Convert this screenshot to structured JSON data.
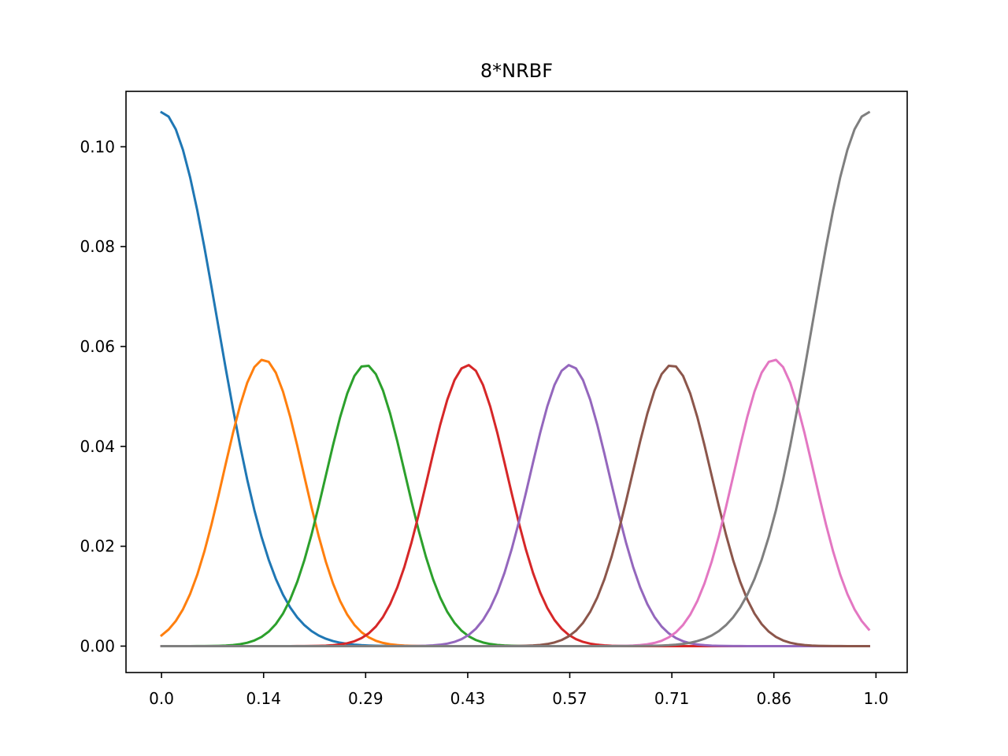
{
  "chart_data": {
    "type": "line",
    "title": "8*NRBF",
    "xlabel": "",
    "ylabel": "",
    "xlim": [
      -0.0497,
      1.0437
    ],
    "ylim": [
      -0.00529,
      0.1111
    ],
    "x_ticks": [
      0.0,
      0.1429,
      0.2857,
      0.4286,
      0.5714,
      0.7143,
      0.8571,
      1.0
    ],
    "x_tick_labels": [
      "0.0",
      "0.14",
      "0.29",
      "0.43",
      "0.57",
      "0.71",
      "0.86",
      "1.0"
    ],
    "y_ticks": [
      0.0,
      0.02,
      0.04,
      0.06,
      0.08,
      0.1
    ],
    "y_tick_labels": [
      "0.00",
      "0.02",
      "0.04",
      "0.06",
      "0.08",
      "0.10"
    ],
    "grid": false,
    "legend": "none",
    "x_sampling": {
      "start": 0.0,
      "stop": 0.99,
      "step": 0.01
    },
    "series": [
      {
        "color": "#1f77b4",
        "center": 0.0,
        "peak": 0.1069,
        "width": 0.0786
      },
      {
        "color": "#ff7f0e",
        "center": 0.1429,
        "peak": 0.0574,
        "width": 0.0557
      },
      {
        "color": "#2ca02c",
        "center": 0.2857,
        "peak": 0.0563,
        "width": 0.0557
      },
      {
        "color": "#d62728",
        "center": 0.4286,
        "peak": 0.0563,
        "width": 0.0557
      },
      {
        "color": "#9467bd",
        "center": 0.5714,
        "peak": 0.0563,
        "width": 0.0557
      },
      {
        "color": "#8c564b",
        "center": 0.7143,
        "peak": 0.0563,
        "width": 0.0557
      },
      {
        "color": "#e377c2",
        "center": 0.8571,
        "peak": 0.0574,
        "width": 0.0557
      },
      {
        "color": "#7f7f7f",
        "center": 0.99,
        "peak": 0.1069,
        "width": 0.0786
      }
    ]
  }
}
